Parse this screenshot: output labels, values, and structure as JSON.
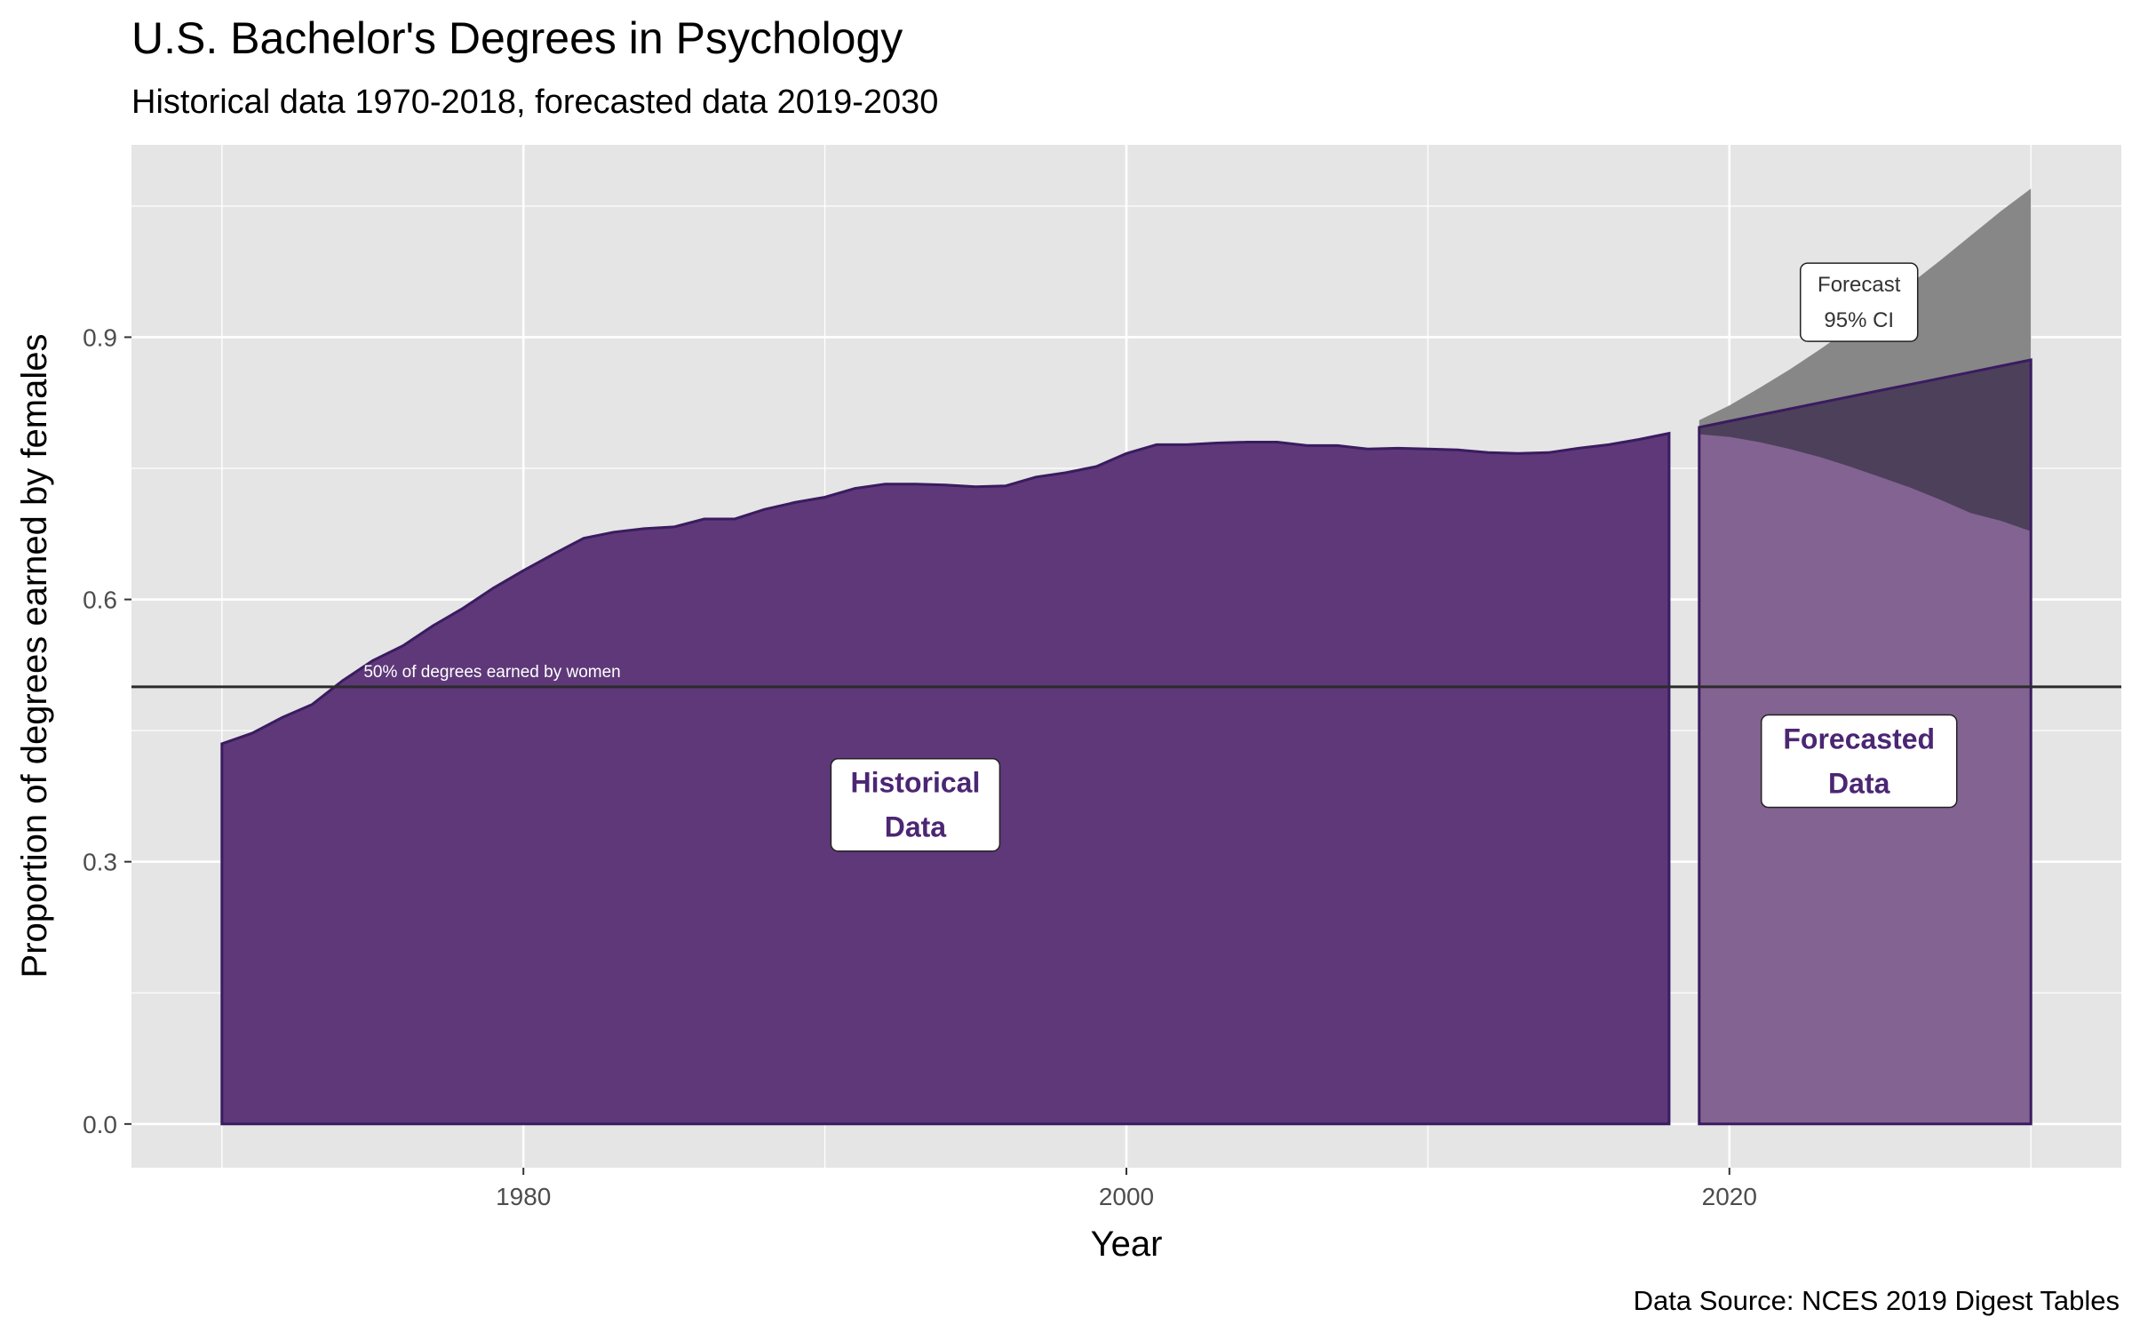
{
  "chart_data": {
    "type": "area",
    "title": "U.S. Bachelor's Degrees in Psychology",
    "subtitle": "Historical data 1970-2018, forecasted data 2019-2030",
    "xlabel": "Year",
    "ylabel": "Proportion of degrees earned by females",
    "caption": "Data Source: NCES 2019 Digest Tables",
    "xlim": [
      1967,
      2033
    ],
    "ylim": [
      -0.05,
      1.12
    ],
    "x_ticks": [
      1980,
      2000,
      2020
    ],
    "y_ticks": [
      0.0,
      0.3,
      0.6,
      0.9
    ],
    "y_tick_labels": [
      "0.0",
      "0.3",
      "0.6",
      "0.9"
    ],
    "grid": true,
    "colors": {
      "panel": "#e5e5e5",
      "grid": "#ffffff",
      "historical_fill": "#5e3878",
      "outline": "#3a1c60",
      "forecast_fill": "#80608f",
      "ci_fill": "#878787",
      "ci_dark": "#4d405a",
      "label_text": "#4b2673"
    },
    "reference_line": {
      "y": 0.5,
      "label": "50% of degrees earned by women"
    },
    "series": [
      {
        "name": "Historical Data",
        "x": [
          1970,
          1971,
          1972,
          1973,
          1974,
          1975,
          1976,
          1977,
          1978,
          1979,
          1980,
          1981,
          1982,
          1983,
          1984,
          1985,
          1986,
          1987,
          1988,
          1989,
          1990,
          1991,
          1992,
          1993,
          1994,
          1995,
          1996,
          1997,
          1998,
          1999,
          2000,
          2001,
          2002,
          2003,
          2004,
          2005,
          2006,
          2007,
          2008,
          2009,
          2010,
          2011,
          2012,
          2013,
          2014,
          2015,
          2016,
          2017,
          2018
        ],
        "y": [
          0.435,
          0.447,
          0.465,
          0.48,
          0.507,
          0.53,
          0.547,
          0.57,
          0.59,
          0.613,
          0.633,
          0.652,
          0.67,
          0.677,
          0.681,
          0.683,
          0.692,
          0.692,
          0.703,
          0.711,
          0.717,
          0.727,
          0.732,
          0.732,
          0.731,
          0.729,
          0.73,
          0.74,
          0.745,
          0.752,
          0.767,
          0.777,
          0.777,
          0.779,
          0.78,
          0.78,
          0.776,
          0.776,
          0.772,
          0.773,
          0.772,
          0.771,
          0.768,
          0.767,
          0.768,
          0.773,
          0.777,
          0.783,
          0.79
        ]
      },
      {
        "name": "Forecasted Data",
        "x": [
          2019,
          2020,
          2021,
          2022,
          2023,
          2024,
          2025,
          2026,
          2027,
          2028,
          2029,
          2030
        ],
        "y": [
          0.797,
          0.804,
          0.811,
          0.818,
          0.825,
          0.832,
          0.839,
          0.846,
          0.853,
          0.86,
          0.867,
          0.874
        ],
        "ci_lower": [
          0.789,
          0.786,
          0.78,
          0.772,
          0.763,
          0.752,
          0.74,
          0.728,
          0.714,
          0.699,
          0.69,
          0.678
        ],
        "ci_upper": [
          0.805,
          0.822,
          0.842,
          0.863,
          0.886,
          0.91,
          0.935,
          0.961,
          0.988,
          1.016,
          1.044,
          1.07
        ]
      }
    ],
    "annotations": [
      {
        "text_lines": [
          "Historical",
          "Data"
        ],
        "x": 1993.0,
        "y": 0.365
      },
      {
        "text_lines": [
          "Forecasted",
          "Data"
        ],
        "x": 2024.3,
        "y": 0.415
      },
      {
        "text_lines": [
          "Forecast",
          "95% CI"
        ],
        "x": 2024.3,
        "y": 0.94
      }
    ]
  }
}
